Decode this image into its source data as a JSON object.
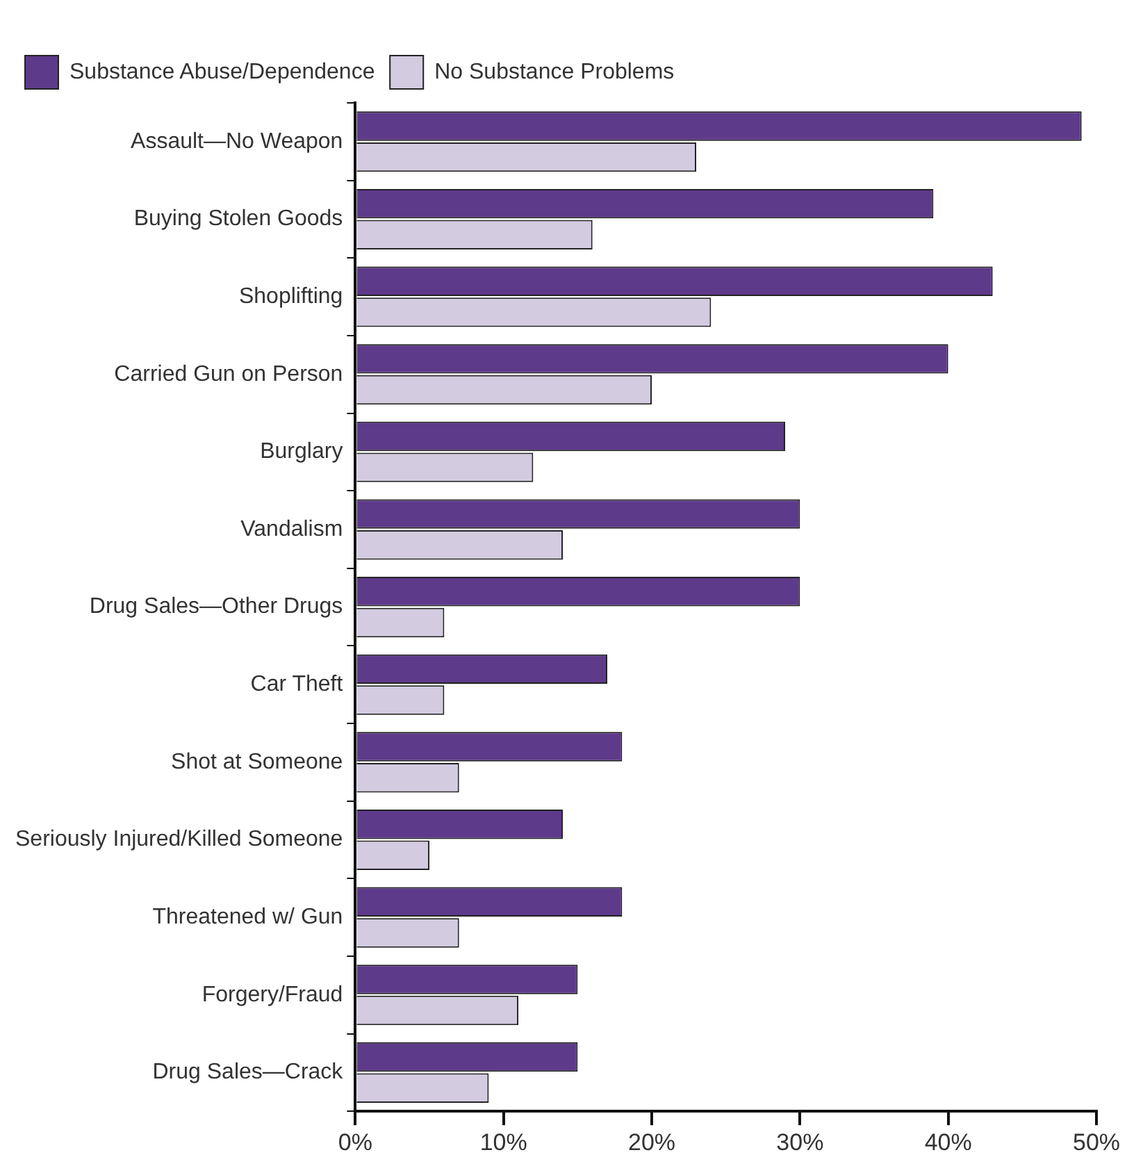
{
  "chart_data": {
    "type": "bar",
    "orientation": "horizontal",
    "categories": [
      "Assault—No Weapon",
      "Buying Stolen Goods",
      "Shoplifting",
      "Carried Gun on Person",
      "Burglary",
      "Vandalism",
      "Drug Sales—Other Drugs",
      "Car Theft",
      "Shot at Someone",
      "Seriously Injured/Killed Someone",
      "Threatened w/ Gun",
      "Forgery/Fraud",
      "Drug Sales—Crack"
    ],
    "series": [
      {
        "name": "Substance Abuse/Dependence",
        "color": "#5e3a8a",
        "values": [
          49,
          39,
          43,
          40,
          29,
          30,
          30,
          17,
          18,
          14,
          18,
          15,
          15
        ]
      },
      {
        "name": "No Substance Problems",
        "color": "#d3cbe0",
        "values": [
          23,
          16,
          24,
          20,
          12,
          14,
          6,
          6,
          7,
          5,
          7,
          11,
          9
        ]
      }
    ],
    "xlim": [
      0,
      50
    ],
    "xticks": [
      {
        "value": 0,
        "label": "0%"
      },
      {
        "value": 10,
        "label": "10%"
      },
      {
        "value": 20,
        "label": "20%"
      },
      {
        "value": 30,
        "label": "30%"
      },
      {
        "value": 40,
        "label": "40%"
      },
      {
        "value": 50,
        "label": "50%"
      }
    ],
    "grid": false,
    "legend": "top left"
  }
}
